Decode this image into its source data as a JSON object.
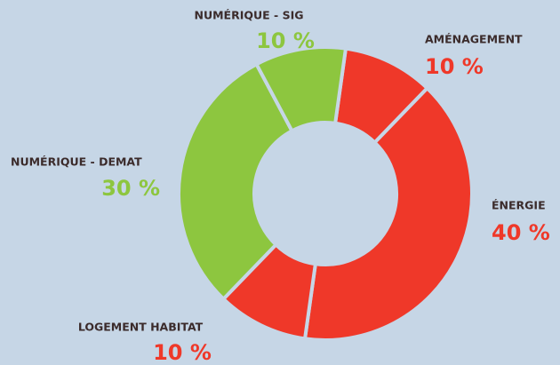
{
  "chart_data": {
    "type": "donut",
    "categories": [
      "AMÉNAGEMENT",
      "ÉNERGIE",
      "LOGEMENT HABITAT",
      "NUMÉRIQUE - DEMAT",
      "NUMÉRIQUE - SIG"
    ],
    "values": [
      10,
      40,
      10,
      30,
      10
    ],
    "value_labels": [
      "10 %",
      "40 %",
      "10 %",
      "30 %",
      "10 %"
    ],
    "colors": [
      "#ef3829",
      "#ef3829",
      "#ef3829",
      "#8dc63f",
      "#8dc63f"
    ]
  }
}
